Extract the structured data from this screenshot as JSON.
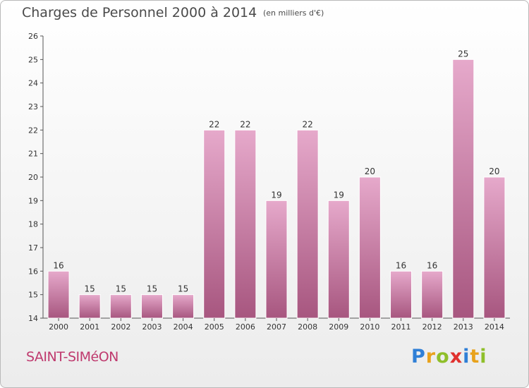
{
  "header": {
    "title": "Charges de Personnel 2000 à 2014",
    "subtitle": "(en milliers d'€)"
  },
  "footer": {
    "commune": "SAINT-SIMéON",
    "logo_letters": [
      "P",
      "r",
      "o",
      "x",
      "i",
      "t",
      "i"
    ],
    "logo_colors": [
      "#2f7fd6",
      "#e8a21c",
      "#8fbf2a",
      "#e0312e",
      "#2f7fd6",
      "#e8a21c",
      "#8fbf2a"
    ]
  },
  "colors": {
    "bar_light": "#e6a9cb",
    "bar_dark": "#a7567f",
    "commune": "#bf3a6e",
    "axis": "#555555"
  },
  "chart_data": {
    "type": "bar",
    "categories": [
      "2000",
      "2001",
      "2002",
      "2003",
      "2004",
      "2005",
      "2006",
      "2007",
      "2008",
      "2009",
      "2010",
      "2011",
      "2012",
      "2013",
      "2014"
    ],
    "values": [
      16,
      15,
      15,
      15,
      15,
      22,
      22,
      19,
      22,
      19,
      20,
      16,
      16,
      25,
      20
    ],
    "title": "Charges de Personnel 2000 à 2014",
    "subtitle": "(en milliers d'€)",
    "ylim": [
      14,
      26
    ],
    "yticks": [
      14,
      15,
      16,
      17,
      18,
      19,
      20,
      21,
      22,
      23,
      24,
      25,
      26
    ],
    "grid": false,
    "legend": "none"
  }
}
